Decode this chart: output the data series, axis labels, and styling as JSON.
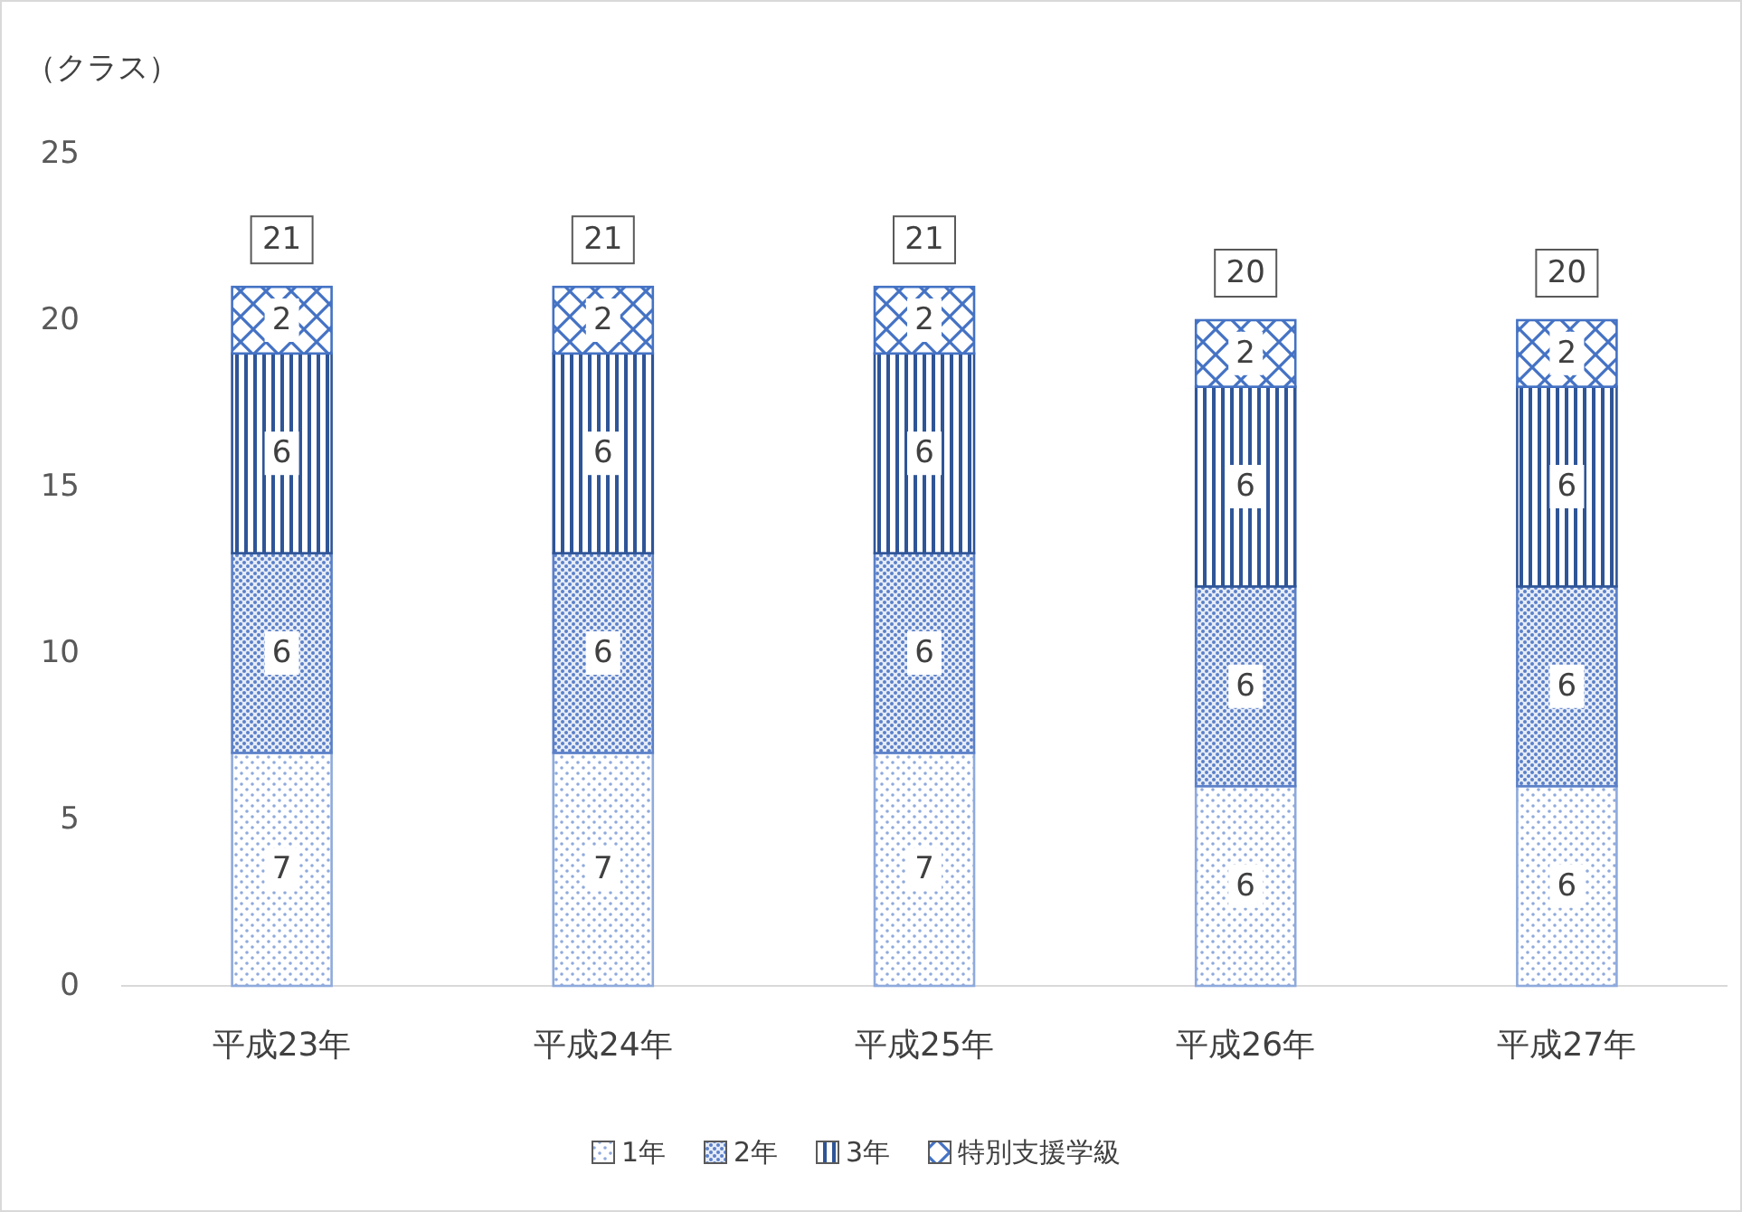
{
  "chart_data": {
    "type": "bar",
    "stacked": true,
    "ylabel": "（クラス）",
    "categories": [
      "平成23年",
      "平成24年",
      "平成25年",
      "平成26年",
      "平成27年"
    ],
    "series": [
      {
        "name": "1年",
        "color": "#8faadc",
        "values": [
          7,
          7,
          7,
          6,
          6
        ]
      },
      {
        "name": "2年",
        "color": "#5b80c8",
        "values": [
          6,
          6,
          6,
          6,
          6
        ]
      },
      {
        "name": "3年",
        "color": "#2f5597",
        "values": [
          6,
          6,
          6,
          6,
          6
        ]
      },
      {
        "name": "特別支援学級",
        "color": "#4472c4",
        "values": [
          2,
          2,
          2,
          2,
          2
        ]
      }
    ],
    "ylim": [
      0,
      25
    ],
    "yticks": [
      0,
      5,
      10,
      15,
      20,
      25
    ],
    "data_labels": true,
    "totals": [
      "21",
      "21",
      "21",
      "20",
      "20"
    ],
    "legend": "bottom",
    "grid": false
  }
}
